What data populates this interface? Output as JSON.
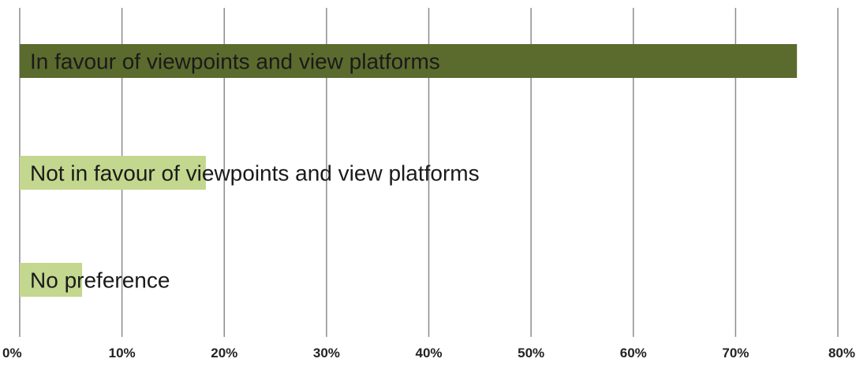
{
  "chart_data": {
    "type": "bar",
    "orientation": "horizontal",
    "categories": [
      "In favour of viewpoints and view platforms",
      "Not in favour of viewpoints and view platforms",
      "No preference"
    ],
    "values": [
      76,
      18.2,
      6.1
    ],
    "value_unit": "%",
    "xlim": [
      0,
      80
    ],
    "x_ticks": [
      0,
      10,
      20,
      30,
      40,
      50,
      60,
      70,
      80
    ],
    "x_tick_labels": [
      "0%",
      "10%",
      "20%",
      "30%",
      "40%",
      "50%",
      "60%",
      "70%",
      "80%"
    ],
    "grid": "vertical",
    "bar_colors": [
      "#5b6b2e",
      "#c3d78e",
      "#c3d78e"
    ],
    "legend": "none",
    "labels_inside_bars": true
  }
}
